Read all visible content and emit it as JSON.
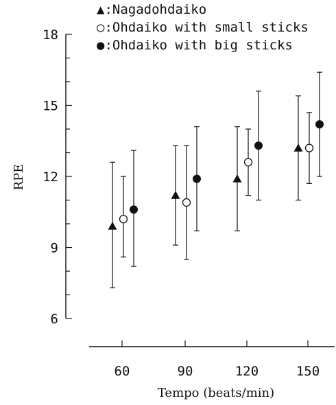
{
  "chart_data": {
    "type": "scatter",
    "xlabel": "Tempo (beats/min)",
    "ylabel": "RPE",
    "categories": [
      "60",
      "90",
      "120",
      "150"
    ],
    "ylim": [
      6,
      18
    ],
    "yticks": [
      6,
      9,
      12,
      15,
      18
    ],
    "grid": false,
    "legend_position": "top",
    "series": [
      {
        "name": "▲:Nagadohdaiko",
        "marker": "triangle-filled",
        "values": [
          9.9,
          11.2,
          11.9,
          13.2
        ],
        "err_low": [
          7.3,
          9.1,
          9.7,
          11.0
        ],
        "err_high": [
          12.6,
          13.3,
          14.1,
          15.4
        ]
      },
      {
        "name": "○:Ohdaiko with small sticks",
        "marker": "circle-open",
        "values": [
          10.2,
          10.9,
          12.6,
          13.2
        ],
        "err_low": [
          8.6,
          8.5,
          11.2,
          11.7
        ],
        "err_high": [
          12.0,
          13.3,
          14.0,
          14.7
        ]
      },
      {
        "name": "●:Ohdaiko with big sticks",
        "marker": "circle-filled",
        "values": [
          10.6,
          11.9,
          13.3,
          14.2
        ],
        "err_low": [
          8.2,
          9.7,
          11.0,
          12.0
        ],
        "err_high": [
          13.1,
          14.1,
          15.6,
          16.4
        ]
      }
    ],
    "colors": {
      "ink": "#111111",
      "background": "#ffffff"
    }
  }
}
